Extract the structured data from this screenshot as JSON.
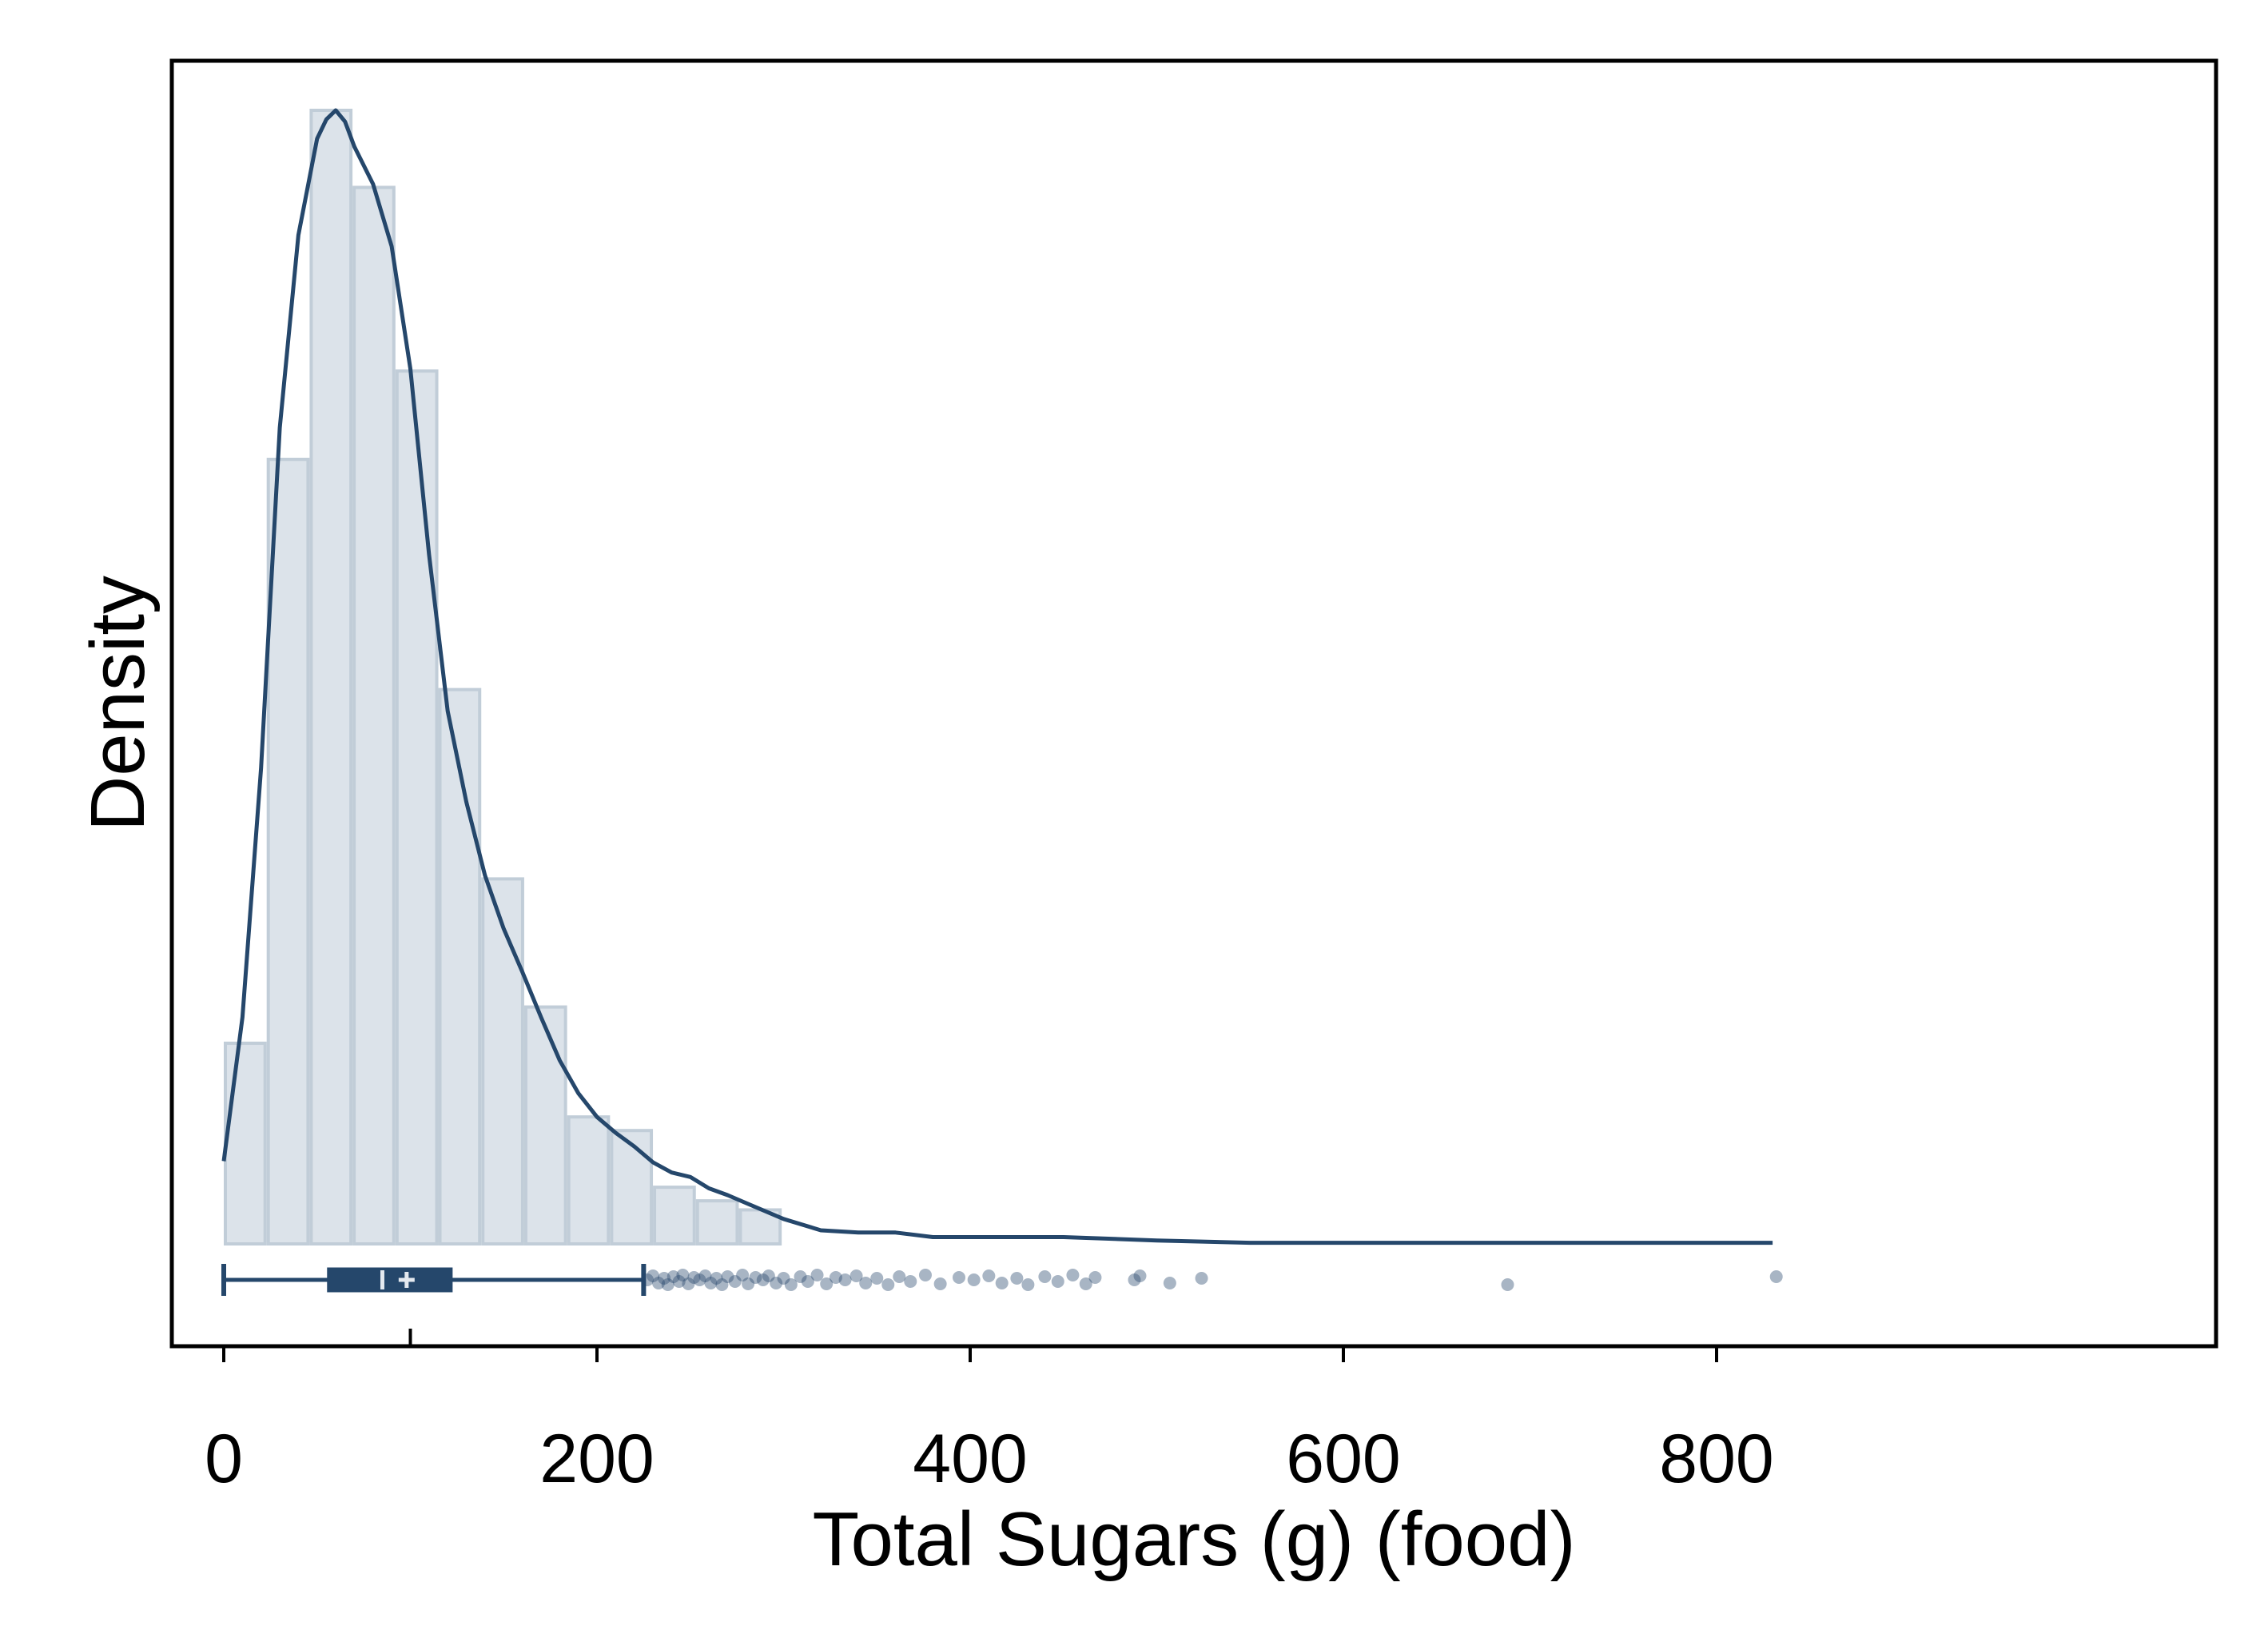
{
  "chart_data": {
    "type": "bar",
    "subtype": "histogram with kernel density curve, box plot and outlier points",
    "xlabel": "Total Sugars (g) (food)",
    "ylabel": "Density",
    "xlim": [
      -22,
      855
    ],
    "ylim": [
      0,
      1.0
    ],
    "x_ticks": [
      0,
      200,
      400,
      600,
      800
    ],
    "minor_tick": 100,
    "y_ticks_shown": false,
    "grid": false,
    "legend": "none",
    "histogram": {
      "bin_edges": [
        0,
        23,
        46,
        69,
        92,
        115,
        138,
        161,
        184,
        207,
        230,
        253,
        276,
        299
      ],
      "values": [
        0.177,
        0.692,
        1.0,
        0.932,
        0.77,
        0.489,
        0.322,
        0.209,
        0.112,
        0.1,
        0.05,
        0.038,
        0.03
      ],
      "fill": "#dce3ea",
      "edge": "#c1cdd8"
    },
    "density": {
      "x": [
        0,
        10,
        20,
        30,
        40,
        50,
        55,
        60,
        65,
        70,
        80,
        90,
        100,
        110,
        120,
        130,
        140,
        150,
        160,
        170,
        180,
        190,
        200,
        210,
        220,
        230,
        240,
        250,
        260,
        270,
        280,
        300,
        320,
        340,
        360,
        380,
        400,
        450,
        500,
        550,
        600,
        650,
        700,
        750,
        800,
        830
      ],
      "y": [
        0.073,
        0.2,
        0.42,
        0.72,
        0.89,
        0.975,
        0.992,
        1.0,
        0.99,
        0.968,
        0.935,
        0.88,
        0.772,
        0.608,
        0.47,
        0.39,
        0.325,
        0.278,
        0.24,
        0.2,
        0.162,
        0.133,
        0.112,
        0.098,
        0.086,
        0.072,
        0.063,
        0.059,
        0.049,
        0.043,
        0.036,
        0.022,
        0.012,
        0.01,
        0.01,
        0.006,
        0.006,
        0.006,
        0.003,
        0.001,
        0.001,
        0.001,
        0.001,
        0.001,
        0.001,
        0.001
      ],
      "color": "#25476b"
    },
    "boxplot": {
      "min": 0,
      "q1": 56,
      "median": 85,
      "mean": 98,
      "q3": 122,
      "whisker_high": 225,
      "color": "#25476b"
    },
    "outliers": [
      227,
      230,
      233,
      236,
      238,
      241,
      244,
      246,
      249,
      252,
      255,
      258,
      261,
      264,
      267,
      270,
      274,
      278,
      281,
      285,
      289,
      292,
      296,
      300,
      304,
      309,
      313,
      318,
      323,
      328,
      333,
      339,
      344,
      350,
      356,
      362,
      368,
      376,
      384,
      394,
      402,
      410,
      417,
      425,
      431,
      440,
      447,
      455,
      462,
      467,
      488,
      491,
      507,
      524,
      688,
      832
    ],
    "outlier_color": "#25476b"
  }
}
